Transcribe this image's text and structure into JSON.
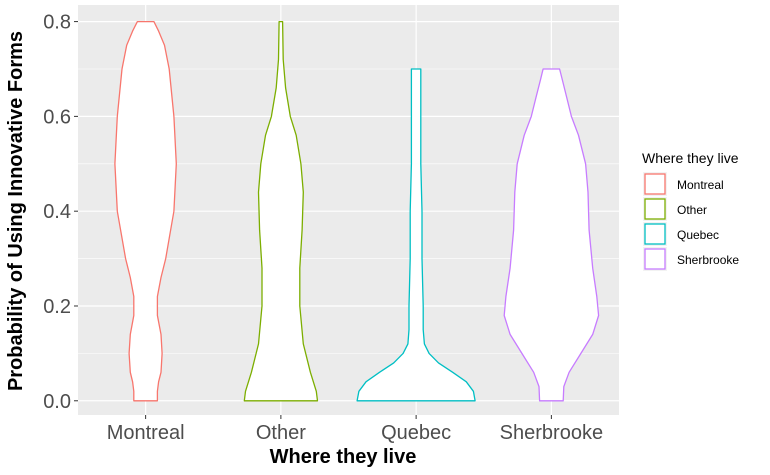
{
  "chart_data": {
    "type": "violin",
    "title": "",
    "xlabel": "Where they live",
    "ylabel": "Probability of Using Innovative Forms",
    "ylim": [
      -0.03,
      0.835
    ],
    "y_ticks": [
      0.0,
      0.2,
      0.4,
      0.6,
      0.8
    ],
    "y_tick_labels": [
      "0.0",
      "0.2",
      "0.4",
      "0.6",
      "0.8"
    ],
    "categories": [
      "Montreal",
      "Other",
      "Quebec",
      "Sherbrooke"
    ],
    "grid": true,
    "legend": {
      "title": "Where they live",
      "position": "right",
      "entries": [
        "Montreal",
        "Other",
        "Quebec",
        "Sherbrooke"
      ]
    },
    "series": [
      {
        "name": "Montreal",
        "color": "#F8766D",
        "range": [
          0.0,
          0.8
        ],
        "profile": [
          [
            0.0,
            0.2
          ],
          [
            0.02,
            0.2
          ],
          [
            0.04,
            0.22
          ],
          [
            0.06,
            0.26
          ],
          [
            0.1,
            0.28
          ],
          [
            0.14,
            0.26
          ],
          [
            0.18,
            0.2
          ],
          [
            0.22,
            0.2
          ],
          [
            0.26,
            0.26
          ],
          [
            0.3,
            0.34
          ],
          [
            0.4,
            0.48
          ],
          [
            0.5,
            0.52
          ],
          [
            0.6,
            0.48
          ],
          [
            0.7,
            0.4
          ],
          [
            0.75,
            0.32
          ],
          [
            0.78,
            0.22
          ],
          [
            0.8,
            0.14
          ]
        ]
      },
      {
        "name": "Other",
        "color": "#7CAE00",
        "range": [
          0.0,
          0.8
        ],
        "profile": [
          [
            0.0,
            0.62
          ],
          [
            0.02,
            0.6
          ],
          [
            0.06,
            0.5
          ],
          [
            0.12,
            0.38
          ],
          [
            0.2,
            0.32
          ],
          [
            0.28,
            0.32
          ],
          [
            0.36,
            0.36
          ],
          [
            0.44,
            0.38
          ],
          [
            0.5,
            0.34
          ],
          [
            0.56,
            0.26
          ],
          [
            0.6,
            0.16
          ],
          [
            0.66,
            0.08
          ],
          [
            0.72,
            0.04
          ],
          [
            0.8,
            0.03
          ]
        ]
      },
      {
        "name": "Quebec",
        "color": "#00BFC4",
        "range": [
          0.0,
          0.7
        ],
        "profile": [
          [
            0.0,
            1.0
          ],
          [
            0.02,
            0.97
          ],
          [
            0.04,
            0.85
          ],
          [
            0.06,
            0.62
          ],
          [
            0.08,
            0.38
          ],
          [
            0.1,
            0.22
          ],
          [
            0.12,
            0.14
          ],
          [
            0.15,
            0.12
          ],
          [
            0.2,
            0.12
          ],
          [
            0.3,
            0.1
          ],
          [
            0.4,
            0.1
          ],
          [
            0.5,
            0.08
          ],
          [
            0.6,
            0.08
          ],
          [
            0.7,
            0.08
          ]
        ]
      },
      {
        "name": "Sherbrooke",
        "color": "#C77CFF",
        "range": [
          0.0,
          0.7
        ],
        "profile": [
          [
            0.0,
            0.2
          ],
          [
            0.03,
            0.21
          ],
          [
            0.06,
            0.3
          ],
          [
            0.1,
            0.5
          ],
          [
            0.14,
            0.7
          ],
          [
            0.18,
            0.8
          ],
          [
            0.22,
            0.77
          ],
          [
            0.28,
            0.7
          ],
          [
            0.36,
            0.64
          ],
          [
            0.44,
            0.62
          ],
          [
            0.5,
            0.58
          ],
          [
            0.56,
            0.46
          ],
          [
            0.6,
            0.34
          ],
          [
            0.64,
            0.26
          ],
          [
            0.68,
            0.18
          ],
          [
            0.7,
            0.14
          ]
        ]
      }
    ]
  }
}
